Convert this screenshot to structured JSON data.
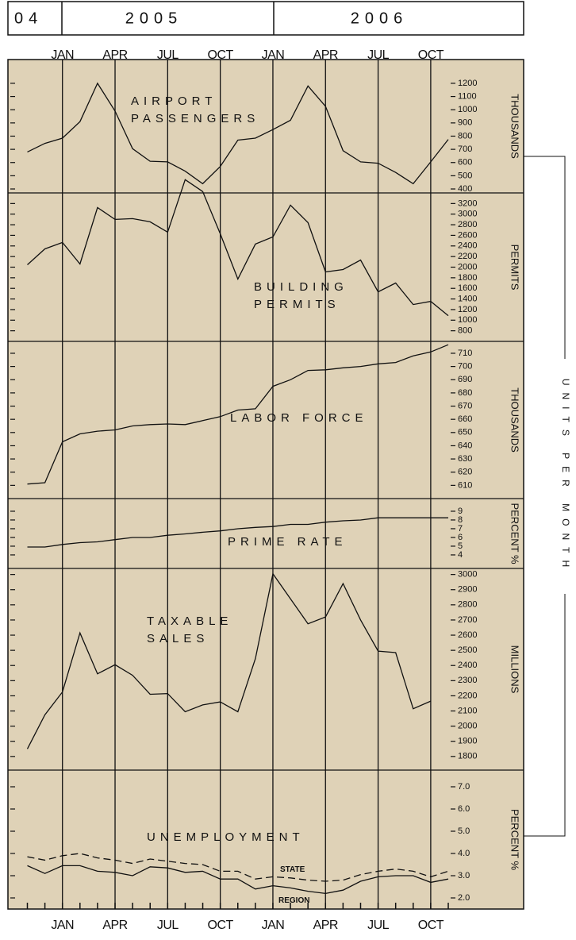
{
  "header": {
    "years": [
      "04",
      "2005",
      "2006"
    ]
  },
  "side_label": "UNITS PER MONTH",
  "chart_data": [
    {
      "type": "line",
      "title": [
        "AIRPORT",
        "PASSENGERS"
      ],
      "y_label": "THOUSANDS",
      "categories": [
        null,
        null,
        "JAN",
        null,
        null,
        "APR",
        null,
        null,
        "JUL",
        null,
        null,
        "OCT",
        null,
        null,
        "JAN",
        null,
        null,
        "APR",
        null,
        null,
        "JUL",
        null,
        null,
        "OCT",
        null
      ],
      "values": [
        680,
        745,
        785,
        910,
        1200,
        990,
        705,
        610,
        605,
        535,
        440,
        570,
        770,
        785,
        850,
        920,
        1180,
        1025,
        690,
        605,
        595,
        525,
        440,
        605,
        775
      ],
      "color": "#111111",
      "ylim": [
        370,
        1380
      ],
      "yticks": [
        400,
        500,
        600,
        700,
        800,
        900,
        1000,
        1100,
        1200
      ]
    },
    {
      "type": "line",
      "title": [
        "BUILDING",
        "PERMITS"
      ],
      "y_label": "PERMITS",
      "categories": [
        null,
        null,
        "JAN",
        null,
        null,
        "APR",
        null,
        null,
        "JUL",
        null,
        null,
        "OCT",
        null,
        null,
        "JAN",
        null,
        null,
        "APR",
        null,
        null,
        "JUL",
        null,
        null,
        "OCT",
        null
      ],
      "values": [
        2045,
        2345,
        2465,
        2060,
        3125,
        2900,
        2915,
        2855,
        2660,
        3650,
        3425,
        2630,
        1775,
        2435,
        2570,
        3170,
        2840,
        1910,
        1955,
        2135,
        1535,
        1700,
        1295,
        1355,
        1085
      ],
      "color": "#111111",
      "ylim": [
        600,
        3400
      ],
      "yticks": [
        800,
        1000,
        1200,
        1400,
        1600,
        1800,
        2000,
        2200,
        2400,
        2600,
        2800,
        3000,
        3200
      ]
    },
    {
      "type": "line",
      "title": [
        "LABOR FORCE"
      ],
      "y_label": "THOUSANDS",
      "categories": [
        null,
        null,
        "JAN",
        null,
        null,
        "APR",
        null,
        null,
        "JUL",
        null,
        null,
        "OCT",
        null,
        null,
        "JAN",
        null,
        null,
        "APR",
        null,
        null,
        "JUL",
        null,
        null,
        "OCT",
        null
      ],
      "values": [
        611,
        612,
        643,
        649,
        651,
        652,
        655,
        656,
        656.5,
        656,
        659,
        662,
        667,
        668,
        685,
        690,
        697,
        697.5,
        699,
        700,
        702,
        703,
        708,
        711,
        716.5
      ],
      "color": "#111111",
      "ylim": [
        600,
        719
      ],
      "yticks": [
        610,
        620,
        630,
        640,
        650,
        660,
        670,
        680,
        690,
        700,
        710
      ]
    },
    {
      "type": "line",
      "title": [
        "PRIME RATE"
      ],
      "y_label": "PERCENT %",
      "categories": [
        null,
        null,
        "JAN",
        null,
        null,
        "APR",
        null,
        null,
        "JUL",
        null,
        null,
        "OCT",
        null,
        null,
        "JAN",
        null,
        null,
        "APR",
        null,
        null,
        "JUL",
        null,
        null,
        "OCT",
        null
      ],
      "values": [
        4.9,
        4.9,
        5.2,
        5.4,
        5.5,
        5.75,
        6.0,
        6.0,
        6.25,
        6.4,
        6.6,
        6.75,
        7.0,
        7.15,
        7.25,
        7.5,
        7.5,
        7.75,
        7.9,
        8.0,
        8.25,
        8.25,
        8.25,
        8.25,
        8.25
      ],
      "color": "#111111",
      "ylim": [
        2.45,
        10.45
      ],
      "yticks": [
        4,
        5,
        6,
        7,
        8,
        9
      ]
    },
    {
      "type": "line",
      "title": [
        "TAXABLE",
        "SALES"
      ],
      "y_label": "MILLIONS",
      "categories": [
        null,
        null,
        "JAN",
        null,
        null,
        "APR",
        null,
        null,
        "JUL",
        null,
        null,
        "OCT",
        null,
        null,
        "JAN",
        null,
        null,
        "APR",
        null,
        null,
        "JUL",
        null,
        null,
        "OCT",
        null
      ],
      "values": [
        1850,
        2075,
        2225,
        2615,
        2345,
        2405,
        2335,
        2210,
        2215,
        2095,
        2140,
        2160,
        2095,
        2445,
        3005,
        2840,
        2675,
        2720,
        2940,
        2700,
        2495,
        2485,
        2115,
        2165,
        null
      ],
      "color": "#111111",
      "ylim": [
        1710,
        3040
      ],
      "yticks": [
        1800,
        1900,
        2000,
        2100,
        2200,
        2300,
        2400,
        2500,
        2600,
        2700,
        2800,
        2900,
        3000
      ]
    },
    {
      "type": "line",
      "title": [
        "UNEMPLOYMENT"
      ],
      "y_label": "PERCENT %",
      "categories": [
        null,
        null,
        "JAN",
        null,
        null,
        "APR",
        null,
        null,
        "JUL",
        null,
        null,
        "OCT",
        null,
        null,
        "JAN",
        null,
        null,
        "APR",
        null,
        null,
        "JUL",
        null,
        null,
        "OCT",
        null
      ],
      "series": [
        {
          "name": "STATE",
          "color": "#111111",
          "dash": true,
          "values": [
            3.85,
            3.7,
            3.9,
            4.0,
            3.8,
            3.7,
            3.55,
            3.75,
            3.65,
            3.55,
            3.5,
            3.2,
            3.2,
            2.85,
            2.95,
            2.9,
            2.8,
            2.75,
            2.8,
            3.05,
            3.2,
            3.3,
            3.2,
            2.95,
            3.2
          ]
        },
        {
          "name": "REGION",
          "color": "#111111",
          "dash": false,
          "values": [
            3.45,
            3.1,
            3.45,
            3.45,
            3.2,
            3.15,
            3.0,
            3.4,
            3.35,
            3.15,
            3.2,
            2.85,
            2.85,
            2.4,
            2.55,
            2.45,
            2.3,
            2.2,
            2.35,
            2.75,
            2.95,
            3.0,
            3.0,
            2.7,
            2.85
          ]
        }
      ],
      "ylim": [
        1.5,
        7.75
      ],
      "yticks": [
        {
          "value": 2,
          "label": "2.0"
        },
        {
          "value": 3,
          "label": "3.0"
        },
        {
          "value": 4,
          "label": "4.0"
        },
        {
          "value": 5,
          "label": "5.0"
        },
        {
          "value": 6,
          "label": "6.0"
        },
        {
          "value": 7,
          "label": "7.0"
        }
      ]
    }
  ]
}
